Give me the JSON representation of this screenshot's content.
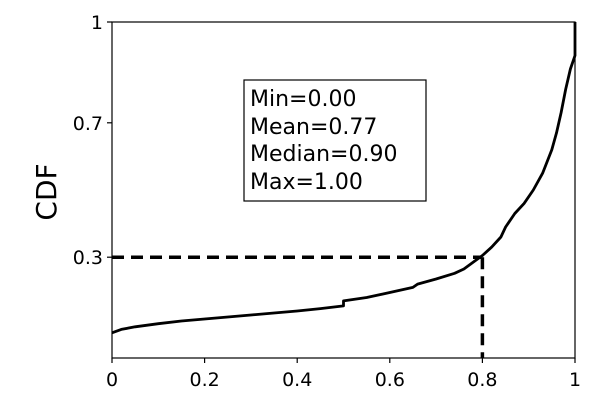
{
  "chart_data": {
    "type": "line",
    "xlabel": "",
    "ylabel": "CDF",
    "xlim": [
      0,
      1
    ],
    "ylim": [
      0,
      1
    ],
    "x_ticks": [
      "0",
      "0.2",
      "0.4",
      "0.6",
      "0.8",
      "1"
    ],
    "x_tick_values": [
      0,
      0.2,
      0.4,
      0.6,
      0.8,
      1
    ],
    "y_ticks": [
      "0.3",
      "0.7",
      "1"
    ],
    "y_tick_values": [
      0.3,
      0.7,
      1
    ],
    "grid": false,
    "series": [
      {
        "x": [
          0,
          0.02,
          0.05,
          0.1,
          0.15,
          0.2,
          0.25,
          0.3,
          0.35,
          0.4,
          0.45,
          0.5,
          0.5,
          0.55,
          0.6,
          0.65,
          0.66,
          0.7,
          0.74,
          0.76,
          0.78,
          0.8,
          0.82,
          0.84,
          0.85,
          0.87,
          0.89,
          0.91,
          0.93,
          0.95,
          0.96,
          0.97,
          0.98,
          0.99,
          1.0,
          1.0
        ],
        "y": [
          0.075,
          0.085,
          0.093,
          0.102,
          0.11,
          0.116,
          0.122,
          0.128,
          0.134,
          0.14,
          0.147,
          0.155,
          0.17,
          0.18,
          0.195,
          0.21,
          0.22,
          0.235,
          0.252,
          0.265,
          0.285,
          0.305,
          0.33,
          0.36,
          0.39,
          0.43,
          0.46,
          0.5,
          0.55,
          0.62,
          0.67,
          0.73,
          0.8,
          0.86,
          0.9,
          1.0
        ]
      }
    ],
    "annotation": {
      "x": 0.8,
      "y": 0.3
    },
    "stats": {
      "min": "Min=0.00",
      "mean": "Mean=0.77",
      "median": "Median=0.90",
      "max": "Max=1.00"
    }
  }
}
